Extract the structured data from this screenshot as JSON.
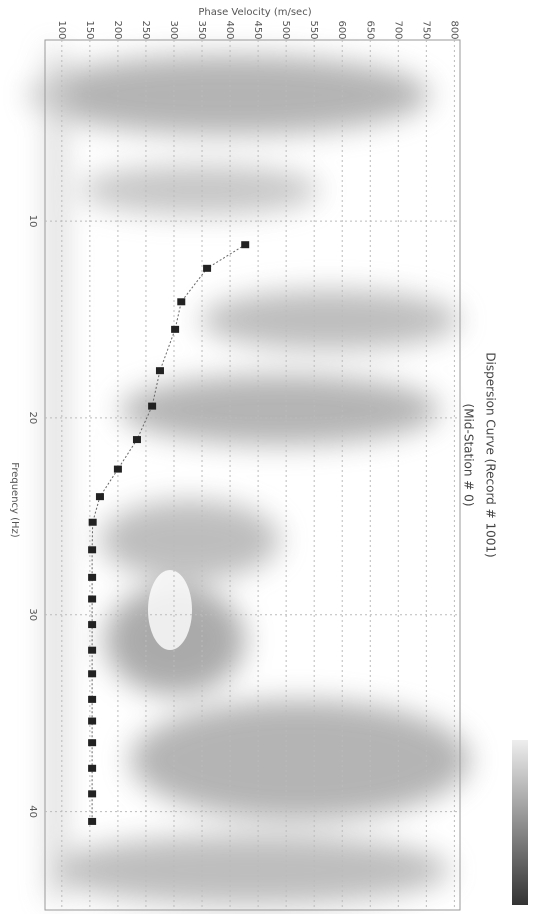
{
  "chart_data": {
    "type": "scatter",
    "title": "Dispersion Curve (Record # 1001)",
    "subtitle": "(Mid-Station # 0)",
    "x_label": "Frequency (Hz)",
    "y_label": "Phase Velocity (m/sec)",
    "x": [
      11.2,
      12.4,
      14.1,
      15.5,
      17.6,
      19.4,
      21.1,
      22.6,
      24.0,
      25.3,
      26.7,
      28.1,
      29.2,
      30.5,
      31.8,
      33.0,
      34.3,
      35.4,
      36.5,
      37.8,
      39.1,
      40.5
    ],
    "values": [
      427,
      359,
      313,
      302,
      275,
      261,
      234,
      200,
      168,
      155,
      154,
      154,
      154,
      154,
      154,
      154,
      154,
      154,
      154,
      154,
      154,
      154
    ],
    "color": "#222222",
    "xlim": [
      0.8,
      45
    ],
    "xticks": [
      10,
      20,
      30,
      40
    ],
    "ylim": [
      70,
      810
    ],
    "yticks": [
      100,
      150,
      200,
      250,
      300,
      350,
      400,
      450,
      500,
      550,
      600,
      650,
      700,
      750,
      800
    ],
    "grid": true
  }
}
